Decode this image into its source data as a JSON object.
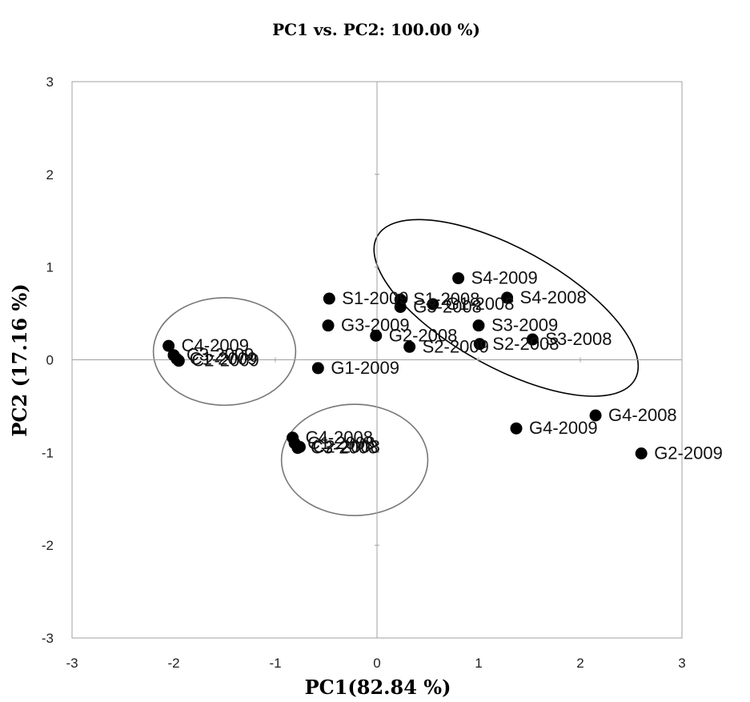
{
  "chart_data": {
    "type": "scatter",
    "title": "PC1 vs. PC2: 100.00 %)",
    "xlabel": "PC1(82.84 %)",
    "ylabel": "PC2 (17.16 %)",
    "xlim": [
      -3,
      3
    ],
    "ylim": [
      -3,
      3
    ],
    "xticks": [
      "-3",
      "-2",
      "-1",
      "0",
      "1",
      "2",
      "3"
    ],
    "yticks": [
      "-3",
      "-2",
      "-1",
      "0",
      "1",
      "2",
      "3"
    ],
    "grid": false,
    "points": [
      {
        "label": "C4-2009",
        "x": -2.05,
        "y": 0.15
      },
      {
        "label": "C3-2009",
        "x": -2.0,
        "y": 0.05
      },
      {
        "label": "C1-2009",
        "x": -1.97,
        "y": 0.01
      },
      {
        "label": "C2-2009",
        "x": -1.95,
        "y": -0.01
      },
      {
        "label": "S1-2009",
        "x": -0.47,
        "y": 0.66
      },
      {
        "label": "G3-2009",
        "x": -0.48,
        "y": 0.37
      },
      {
        "label": "G1-2009",
        "x": -0.58,
        "y": -0.09
      },
      {
        "label": "C4-2008",
        "x": -0.83,
        "y": -0.84
      },
      {
        "label": "C1-2008",
        "x": -0.81,
        "y": -0.9
      },
      {
        "label": "C2-2008",
        "x": -0.76,
        "y": -0.94
      },
      {
        "label": "C3-2008",
        "x": -0.78,
        "y": -0.95
      },
      {
        "label": "S1-2008",
        "x": 0.23,
        "y": 0.65
      },
      {
        "label": "G3-2008",
        "x": 0.23,
        "y": 0.57
      },
      {
        "label": "G1-2008",
        "x": 0.55,
        "y": 0.6
      },
      {
        "label": "G2-2008",
        "x": -0.01,
        "y": 0.26
      },
      {
        "label": "S2-2009",
        "x": 0.32,
        "y": 0.14
      },
      {
        "label": "S4-2009",
        "x": 0.8,
        "y": 0.88
      },
      {
        "label": "S3-2009",
        "x": 1.0,
        "y": 0.37
      },
      {
        "label": "S2-2008",
        "x": 1.01,
        "y": 0.17
      },
      {
        "label": "S4-2008",
        "x": 1.28,
        "y": 0.67
      },
      {
        "label": "S3-2008",
        "x": 1.53,
        "y": 0.22
      },
      {
        "label": "G4-2008",
        "x": 2.15,
        "y": -0.6
      },
      {
        "label": "G4-2009",
        "x": 1.37,
        "y": -0.74
      },
      {
        "label": "G2-2009",
        "x": 2.6,
        "y": -1.01
      }
    ],
    "groups": [
      {
        "cx": -1.5,
        "cy": 0.09,
        "rx": 0.7,
        "ry": 0.58,
        "angle": 0,
        "color": "#777777"
      },
      {
        "cx": -0.22,
        "cy": -1.08,
        "rx": 0.72,
        "ry": 0.6,
        "angle": 0,
        "color": "#777777"
      },
      {
        "cx": 1.27,
        "cy": 0.56,
        "rx": 1.45,
        "ry": 0.64,
        "angle": 29,
        "color": "#000000"
      }
    ]
  }
}
